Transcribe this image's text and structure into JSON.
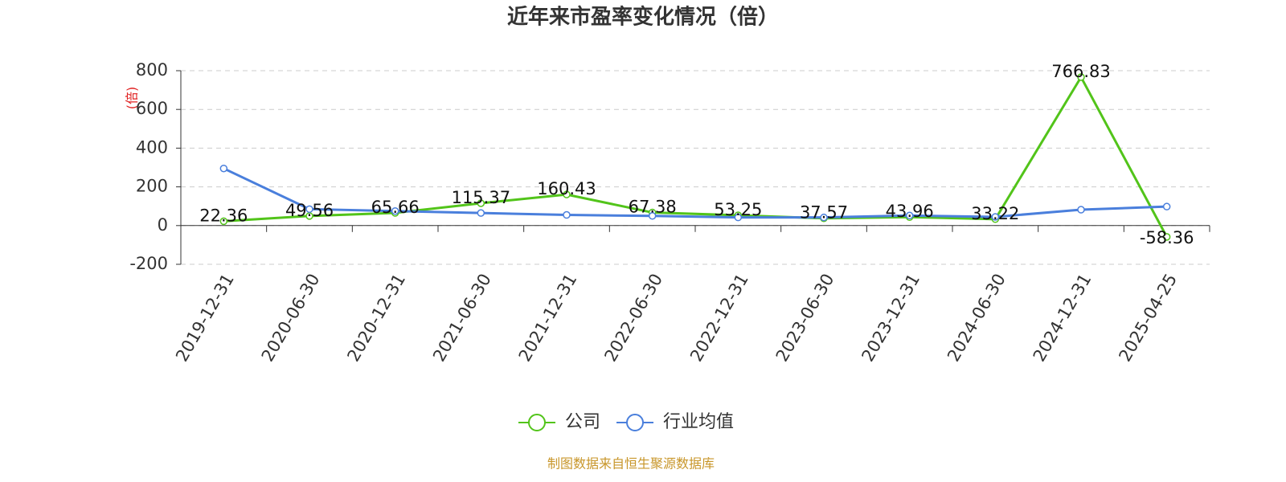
{
  "chart_data": {
    "type": "line",
    "title": "近年来市盈率变化情况（倍）",
    "ylabel": "(倍)",
    "source": "制图数据来自恒生聚源数据库",
    "categories": [
      "2019-12-31",
      "2020-06-30",
      "2020-12-31",
      "2021-06-30",
      "2021-12-31",
      "2022-06-30",
      "2022-12-31",
      "2023-06-30",
      "2023-12-31",
      "2024-06-30",
      "2024-12-31",
      "2025-04-25"
    ],
    "series": [
      {
        "name": "公司",
        "color": "#52c41a",
        "values": [
          22.36,
          49.56,
          65.66,
          115.37,
          160.43,
          67.38,
          53.25,
          37.57,
          43.96,
          33.22,
          766.83,
          -58.36
        ],
        "show_labels": true
      },
      {
        "name": "行业均值",
        "color": "#4a7fdc",
        "values": [
          295,
          85,
          75,
          65,
          55,
          50,
          42,
          42,
          52,
          45,
          82,
          98
        ],
        "show_labels": false
      }
    ],
    "ylim": [
      -200,
      800
    ],
    "yticks": [
      -200,
      0,
      200,
      400,
      600,
      800
    ],
    "grid": true,
    "legend": "bottom"
  }
}
